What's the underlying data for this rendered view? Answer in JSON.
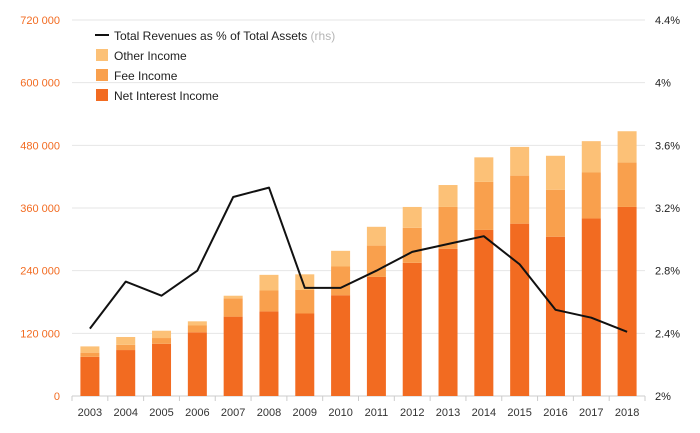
{
  "chart_data": {
    "type": "bar",
    "stacked": true,
    "categories": [
      "2003",
      "2004",
      "2005",
      "2006",
      "2007",
      "2008",
      "2009",
      "2010",
      "2011",
      "2012",
      "2013",
      "2014",
      "2015",
      "2016",
      "2017",
      "2018"
    ],
    "series": [
      {
        "name": "Net Interest Income",
        "type": "bar",
        "axis": "left",
        "color": "#f26b21",
        "values": [
          75000,
          88000,
          100000,
          122000,
          152000,
          162000,
          158000,
          193000,
          228000,
          255000,
          282000,
          318000,
          330000,
          305000,
          340000,
          362000
        ]
      },
      {
        "name": "Fee Income",
        "type": "bar",
        "axis": "left",
        "color": "#f9a04d",
        "values": [
          8000,
          10000,
          11000,
          13000,
          35000,
          40000,
          45000,
          55000,
          60000,
          67000,
          80000,
          92000,
          92000,
          90000,
          88000,
          85000
        ]
      },
      {
        "name": "Other Income",
        "type": "bar",
        "axis": "left",
        "color": "#fcc177",
        "values": [
          12000,
          15000,
          14000,
          8000,
          5000,
          30000,
          30000,
          30000,
          36000,
          40000,
          42000,
          47000,
          55000,
          65000,
          60000,
          60000
        ]
      },
      {
        "name": "Total Revenues as % of Total Assets",
        "note": "(rhs)",
        "type": "line",
        "axis": "right",
        "color": "#111111",
        "values": [
          2.43,
          2.73,
          2.64,
          2.8,
          3.27,
          3.33,
          2.69,
          2.69,
          2.8,
          2.92,
          2.97,
          3.02,
          2.84,
          2.55,
          2.5,
          2.41
        ]
      }
    ],
    "y_left": {
      "ylim": [
        0,
        720000
      ],
      "ticks": [
        "0",
        "120 000",
        "240 000",
        "360 000",
        "480 000",
        "600 000",
        "720 000"
      ],
      "color": "#f26b21"
    },
    "y_right": {
      "ylim": [
        2.0,
        4.4
      ],
      "ticks": [
        "2%",
        "2.4%",
        "2.8%",
        "3.2%",
        "3.6%",
        "4%",
        "4.4%"
      ]
    },
    "title": "",
    "xlabel": "",
    "grid": true,
    "legend_position": "top-left",
    "legend_order": [
      "Total Revenues as % of Total Assets",
      "Other Income",
      "Fee Income",
      "Net Interest Income"
    ]
  }
}
